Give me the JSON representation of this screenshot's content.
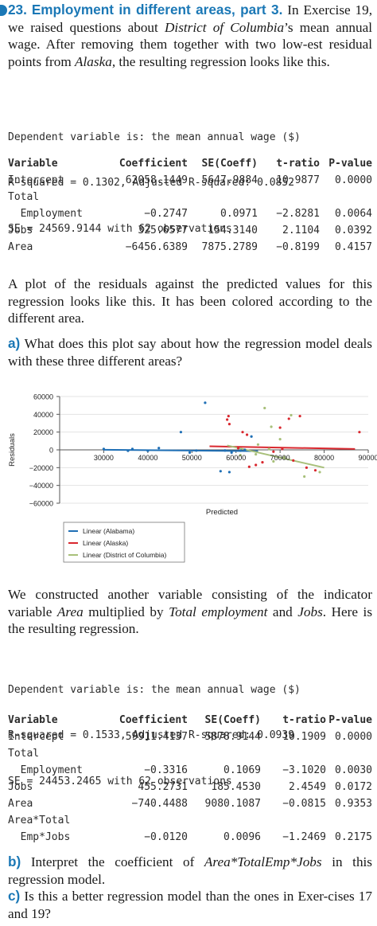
{
  "exercise": {
    "number": "23.",
    "title": "Employment in different areas, part 3.",
    "intro_1": " In Exercise 19, we raised questions about ",
    "intro_em": "District of Columbia",
    "intro_2": "’s mean annual wage. After removing them together with two low-est residual points from ",
    "intro_em2": "Alaska",
    "intro_3": ", the resulting regression looks like this."
  },
  "regression1": {
    "lines": [
      "Dependent variable is: the mean annual wage ($)",
      "R-squared = 0.1302, Adjusted R-squared: 0.0852",
      "SE = 24569.9144 with 62 observations"
    ],
    "headers": [
      "Variable",
      "Coefficient",
      "SE(Coeff)",
      "t-ratio",
      "P-value"
    ],
    "rows": [
      {
        "var": "Intercept",
        "coef": "62058.1449",
        "se": "5647.9884",
        "t": "10.9877",
        "p": "0.0000"
      },
      {
        "var": "Total",
        "coef": "",
        "se": "",
        "t": "",
        "p": ""
      },
      {
        "var": "  Employment",
        "coef": "−0.2747",
        "se": "0.0971",
        "t": "−2.8281",
        "p": "0.0064"
      },
      {
        "var": "Jobs",
        "coef": "325.6577",
        "se": "154.3140",
        "t": "2.1104",
        "p": "0.0392"
      },
      {
        "var": "Area",
        "coef": "−6456.6389",
        "se": "7875.2789",
        "t": "−0.8199",
        "p": "0.4157"
      }
    ]
  },
  "plot_text": "A plot of the residuals against the predicted values for this regression looks like this. It has been colored according to the different area.",
  "part_a": {
    "label": "a)",
    "text": " What does this plot say about how the regression model deals with these three different areas?"
  },
  "chart_data": {
    "type": "scatter",
    "xlabel": "Predicted",
    "ylabel": "Residuals",
    "xlim": [
      20000,
      90000
    ],
    "ylim": [
      -60000,
      60000
    ],
    "x_ticks": [
      30000,
      40000,
      50000,
      60000,
      70000,
      80000,
      90000
    ],
    "x_tick_labels": [
      "30000",
      "40000",
      "50000",
      "60000",
      "70000",
      "80000",
      "90000"
    ],
    "y_ticks": [
      60000,
      40000,
      20000,
      0,
      -20000,
      -40000,
      -60000
    ],
    "y_tick_labels": [
      "60000",
      "40000",
      "20000",
      "0",
      "−20000",
      "−40000",
      "−60000"
    ],
    "grid": true,
    "legend_position": "bottom-left",
    "colors": {
      "Alabama": "#1f6fb5",
      "Alaska": "#d9282f",
      "District of Columbia": "#a8c07a"
    },
    "series": [
      {
        "name": "Alabama",
        "points": [
          [
            30000,
            1000
          ],
          [
            35500,
            -1000
          ],
          [
            36500,
            1000
          ],
          [
            40000,
            -1000
          ],
          [
            42500,
            2000
          ],
          [
            49500,
            -3000
          ],
          [
            53000,
            53000
          ],
          [
            47500,
            20000
          ],
          [
            51000,
            -800
          ],
          [
            57500,
            -700
          ],
          [
            59000,
            -3000
          ],
          [
            56500,
            -24000
          ],
          [
            58500,
            -25000
          ],
          [
            62000,
            0
          ],
          [
            63500,
            15000
          ],
          [
            61000,
            -900
          ]
        ],
        "fit": [
          [
            30000,
            100
          ],
          [
            65000,
            -1500
          ]
        ]
      },
      {
        "name": "Alaska",
        "points": [
          [
            58000,
            34000
          ],
          [
            58500,
            29000
          ],
          [
            58300,
            38000
          ],
          [
            61500,
            20000
          ],
          [
            62500,
            17000
          ],
          [
            60500,
            2000
          ],
          [
            63000,
            -19000
          ],
          [
            64500,
            -17000
          ],
          [
            66000,
            -14000
          ],
          [
            70000,
            25000
          ],
          [
            72000,
            35000
          ],
          [
            74500,
            38000
          ],
          [
            76000,
            -20000
          ],
          [
            78000,
            -23000
          ],
          [
            88000,
            20000
          ],
          [
            70500,
            1000
          ],
          [
            68500,
            -2000
          ],
          [
            73000,
            -12000
          ]
        ],
        "fit": [
          [
            54000,
            4000
          ],
          [
            87000,
            1000
          ]
        ]
      },
      {
        "name": "District of Columbia",
        "points": [
          [
            64500,
            -5000
          ],
          [
            66500,
            47000
          ],
          [
            68000,
            26000
          ],
          [
            70000,
            12000
          ],
          [
            72500,
            39000
          ],
          [
            65000,
            6000
          ],
          [
            68500,
            -13000
          ],
          [
            71000,
            -8000
          ],
          [
            75500,
            -30000
          ],
          [
            79000,
            -25000
          ],
          [
            67500,
            1000
          ],
          [
            61000,
            -6000
          ]
        ],
        "fit": [
          [
            58000,
            5000
          ],
          [
            80000,
            -20000
          ]
        ]
      }
    ],
    "legend": [
      "Linear (Alabama)",
      "Linear (Alaska)",
      "Linear (District of Columbia)"
    ]
  },
  "constructed": {
    "t1": "We constructed another variable consisting of the indicator variable ",
    "area": "Area",
    "t2": " multiplied by ",
    "total": "Total employment",
    "t3": " and ",
    "jobs": "Jobs",
    "t4": ". Here is the resulting regression."
  },
  "regression2": {
    "lines": [
      "Dependent variable is: the mean annual wage ($)",
      "R-squared = 0.1533, Adjusted R-squared: 0.0939",
      "SE = 24453.2465 with 62 observations"
    ],
    "headers": [
      "Variable",
      "Coefficient",
      "SE(Coeff)",
      "t-ratio",
      "P-value"
    ],
    "rows": [
      {
        "var": "Intercept",
        "coef": "59911.4137",
        "se": "5878.9144",
        "t": "10.1909",
        "p": "0.0000"
      },
      {
        "var": "Total",
        "coef": "",
        "se": "",
        "t": "",
        "p": ""
      },
      {
        "var": "  Employment",
        "coef": "−0.3316",
        "se": "0.1069",
        "t": "−3.1020",
        "p": "0.0030"
      },
      {
        "var": "Jobs",
        "coef": "455.2731",
        "se": "185.4530",
        "t": "2.4549",
        "p": "0.0172"
      },
      {
        "var": "Area",
        "coef": "−740.4488",
        "se": "9080.1087",
        "t": "−0.0815",
        "p": "0.9353"
      },
      {
        "var": "Area*Total",
        "coef": "",
        "se": "",
        "t": "",
        "p": ""
      },
      {
        "var": "  Emp*Jobs",
        "coef": "−0.0120",
        "se": "0.0096",
        "t": "−1.2469",
        "p": "0.2175"
      }
    ]
  },
  "part_b": {
    "label": "b)",
    "t1": " Interpret the coefficient of ",
    "em": "Area*TotalEmp*Jobs",
    "t2": " in this regression model."
  },
  "part_c": {
    "label": "c)",
    "text": " Is this a better regression model than the ones in Exer-cises 17 and 19?"
  }
}
